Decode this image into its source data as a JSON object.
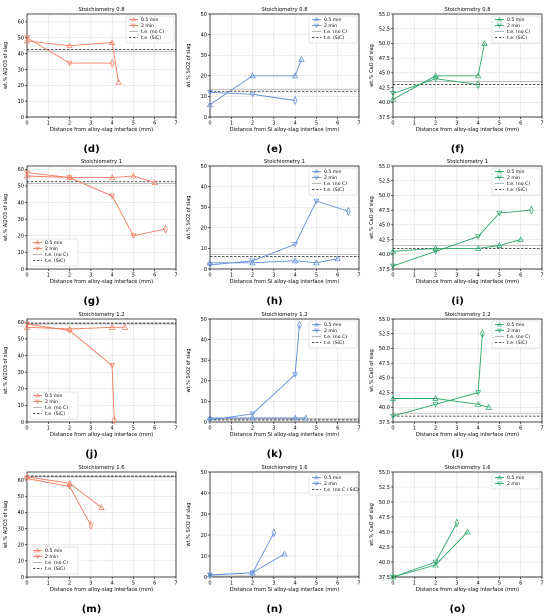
{
  "colors": {
    "al2o3": "#f07c61",
    "sio2": "#5f8fd8",
    "cao": "#2ea86a",
    "axis": "#000000",
    "grid": "#d9d9d9",
    "te_line": "#555555"
  },
  "chart_data": [
    {
      "type": "line",
      "panel": "(d)",
      "title": "Stoichiometry 0.8",
      "xlabel": "Distance from alloy-slag interface (mm)",
      "ylabel": "wt.% Al2O3 of slag",
      "xlim": [
        0,
        7
      ],
      "ylim": [
        0,
        65
      ],
      "xticks": [
        0,
        1,
        2,
        3,
        4,
        5,
        6,
        7
      ],
      "yticks": [
        0,
        10,
        20,
        30,
        40,
        50,
        60
      ],
      "color_key": "al2o3",
      "legend_position": "top-right",
      "legend": [
        "0.5 min",
        "2 min",
        "t.e. (no C)",
        "t.e. (SiC)"
      ],
      "series": [
        {
          "name": "0.5 min",
          "x": [
            0,
            2,
            4,
            4.3
          ],
          "y": [
            48,
            45,
            47,
            22
          ]
        },
        {
          "name": "2 min",
          "x": [
            0,
            2,
            4
          ],
          "y": [
            50,
            34,
            34
          ]
        }
      ],
      "ref_lines": [
        {
          "name": "t.e. (no C)",
          "y": 41.5
        },
        {
          "name": "t.e. (SiC)",
          "y": 42.5
        }
      ]
    },
    {
      "type": "line",
      "panel": "(e)",
      "title": "Stoichiometry 0.8",
      "xlabel": "Distance from Si alloy-slag interface (mm)",
      "ylabel": "wt.% SiO2 of slag",
      "xlim": [
        0,
        7
      ],
      "ylim": [
        0,
        50
      ],
      "xticks": [
        0,
        1,
        2,
        3,
        4,
        5,
        6,
        7
      ],
      "yticks": [
        0,
        10,
        20,
        30,
        40,
        50
      ],
      "color_key": "sio2",
      "legend_position": "top-right",
      "legend": [
        "0.5 min",
        "2 min",
        "t.e. (no C)",
        "t.e. (SiC)"
      ],
      "series": [
        {
          "name": "0.5 min",
          "x": [
            0,
            2,
            4,
            4.3
          ],
          "y": [
            6,
            20,
            20,
            28
          ]
        },
        {
          "name": "2 min",
          "x": [
            0,
            2,
            4
          ],
          "y": [
            12,
            11,
            8
          ]
        }
      ],
      "ref_lines": [
        {
          "name": "t.e. (no C)",
          "y": 13.5
        },
        {
          "name": "t.e. (SiC)",
          "y": 12.5
        }
      ]
    },
    {
      "type": "line",
      "panel": "(f)",
      "title": "Stoichiometry 0.8",
      "xlabel": "Distance from alloy-slag interface (mm)",
      "ylabel": "wt.% CaO of slag",
      "xlim": [
        0,
        7
      ],
      "ylim": [
        37.5,
        55
      ],
      "xticks": [
        0,
        1,
        2,
        3,
        4,
        5,
        6,
        7
      ],
      "yticks": [
        37.5,
        40.0,
        42.5,
        45.0,
        47.5,
        50.0,
        52.5,
        55.0
      ],
      "ytick_labels": [
        "37.5",
        "40.0",
        "42.5",
        "45.0",
        "47.5",
        "50.0",
        "52.5",
        "55.0"
      ],
      "color_key": "cao",
      "legend_position": "top-right",
      "legend": [
        "0.5 min",
        "2 min",
        "t.e. (no C)",
        "t.e. (SiC)"
      ],
      "series": [
        {
          "name": "0.5 min",
          "x": [
            0,
            2,
            4,
            4.3
          ],
          "y": [
            40.5,
            44.5,
            44.5,
            50
          ]
        },
        {
          "name": "2 min",
          "x": [
            0,
            2,
            4
          ],
          "y": [
            41.5,
            44,
            43
          ]
        }
      ],
      "ref_lines": [
        {
          "name": "t.e. (no C)",
          "y": 43.5
        },
        {
          "name": "t.e. (SiC)",
          "y": 43.0
        }
      ]
    },
    {
      "type": "line",
      "panel": "(g)",
      "title": "Stoichiometry 1",
      "xlabel": "Distance from alloy-slag interface (mm)",
      "ylabel": "wt.% Al2O3 of slag",
      "xlim": [
        0,
        7
      ],
      "ylim": [
        0,
        62
      ],
      "xticks": [
        0,
        1,
        2,
        3,
        4,
        5,
        6,
        7
      ],
      "yticks": [
        0,
        10,
        20,
        30,
        40,
        50,
        60
      ],
      "color_key": "al2o3",
      "legend_position": "bottom-left",
      "legend": [
        "0.5 min",
        "2 min",
        "t.e. (no C)",
        "t.e. (SiC)"
      ],
      "series": [
        {
          "name": "0.5 min",
          "x": [
            0,
            2,
            4,
            5,
            6
          ],
          "y": [
            56,
            55,
            55,
            56,
            52
          ]
        },
        {
          "name": "2 min",
          "x": [
            0,
            2,
            4,
            5,
            6.5
          ],
          "y": [
            58,
            55,
            44,
            20,
            24
          ]
        }
      ],
      "ref_lines": [
        {
          "name": "t.e. (no C)",
          "y": 51.5
        },
        {
          "name": "t.e. (SiC)",
          "y": 52.5
        }
      ]
    },
    {
      "type": "line",
      "panel": "(h)",
      "title": "Stoichiometry 1",
      "xlabel": "Distance from Si alloy-slag interface (mm)",
      "ylabel": "wt.% SiO2 of slag",
      "xlim": [
        0,
        7
      ],
      "ylim": [
        0,
        50
      ],
      "xticks": [
        0,
        1,
        2,
        3,
        4,
        5,
        6,
        7
      ],
      "yticks": [
        0,
        10,
        20,
        30,
        40,
        50
      ],
      "color_key": "sio2",
      "legend_position": "top-right",
      "legend": [
        "0.5 min",
        "2 min",
        "t.e. (no C)",
        "t.e. (SiC)"
      ],
      "series": [
        {
          "name": "0.5 min",
          "x": [
            0,
            2,
            4,
            5,
            6
          ],
          "y": [
            3,
            3,
            4,
            3,
            5
          ]
        },
        {
          "name": "2 min",
          "x": [
            0,
            2,
            4,
            5,
            6.5
          ],
          "y": [
            2,
            4,
            12,
            33,
            28
          ]
        }
      ],
      "ref_lines": [
        {
          "name": "t.e. (no C)",
          "y": 7
        },
        {
          "name": "t.e. (SiC)",
          "y": 6
        }
      ]
    },
    {
      "type": "line",
      "panel": "(i)",
      "title": "Stoichiometry 1",
      "xlabel": "Distance from alloy-slag interface (mm)",
      "ylabel": "wt.% CaO of slag",
      "xlim": [
        0,
        7
      ],
      "ylim": [
        37.5,
        55
      ],
      "xticks": [
        0,
        1,
        2,
        3,
        4,
        5,
        6,
        7
      ],
      "yticks": [
        37.5,
        40.0,
        42.5,
        45.0,
        47.5,
        50.0,
        52.5,
        55.0
      ],
      "ytick_labels": [
        "37.5",
        "40.0",
        "42.5",
        "45.0",
        "47.5",
        "50.0",
        "52.5",
        "55.0"
      ],
      "color_key": "cao",
      "legend_position": "top-right",
      "legend": [
        "0.5 min",
        "2 min",
        "t.e. (no C)",
        "t.e. (SiC)"
      ],
      "series": [
        {
          "name": "0.5 min",
          "x": [
            0,
            2,
            4,
            5,
            6
          ],
          "y": [
            40.5,
            41,
            41,
            41.5,
            42.5
          ]
        },
        {
          "name": "2 min",
          "x": [
            0,
            2,
            4,
            5,
            6.5
          ],
          "y": [
            38,
            40.5,
            43,
            47,
            47.5
          ]
        }
      ],
      "ref_lines": [
        {
          "name": "t.e. (no C)",
          "y": 41.5
        },
        {
          "name": "t.e. (SiC)",
          "y": 41
        }
      ]
    },
    {
      "type": "line",
      "panel": "(j)",
      "title": "Stoichiometry 1.2",
      "xlabel": "Distance from alloy-slag interface (mm)",
      "ylabel": "wt.% Al2O3 of slag",
      "xlim": [
        0,
        7
      ],
      "ylim": [
        0,
        62
      ],
      "xticks": [
        0,
        1,
        2,
        3,
        4,
        5,
        6,
        7
      ],
      "yticks": [
        0,
        10,
        20,
        30,
        40,
        50,
        60
      ],
      "color_key": "al2o3",
      "legend_position": "bottom-left",
      "legend": [
        "0.5 min",
        "2 min",
        "t.e. (no C)",
        "t.e. (SiC)"
      ],
      "series": [
        {
          "name": "0.5 min",
          "x": [
            0,
            2,
            4,
            4.6
          ],
          "y": [
            57,
            56,
            57,
            57
          ]
        },
        {
          "name": "2 min",
          "x": [
            0,
            2,
            4,
            4.1
          ],
          "y": [
            59,
            55,
            34,
            1
          ]
        }
      ],
      "ref_lines": [
        {
          "name": "t.e. (no C)",
          "y": 59
        },
        {
          "name": "t.e. (SiC)",
          "y": 59.5
        }
      ]
    },
    {
      "type": "line",
      "panel": "(k)",
      "title": "Stoichiometry 1.2",
      "xlabel": "Distance from Si alloy-slag interface (mm)",
      "ylabel": "wt.% SiO2 of slag",
      "xlim": [
        0,
        7
      ],
      "ylim": [
        0,
        50
      ],
      "xticks": [
        0,
        1,
        2,
        3,
        4,
        5,
        6,
        7
      ],
      "yticks": [
        0,
        10,
        20,
        30,
        40,
        50
      ],
      "color_key": "sio2",
      "legend_position": "top-right",
      "legend": [
        "0.5 min",
        "2 min",
        "t.e. (no C)",
        "t.e. (SiC)"
      ],
      "series": [
        {
          "name": "0.5 min",
          "x": [
            0,
            2,
            4,
            4.5
          ],
          "y": [
            2,
            2,
            2,
            2
          ]
        },
        {
          "name": "2 min",
          "x": [
            0,
            2,
            4,
            4.2
          ],
          "y": [
            1,
            4,
            23,
            47
          ]
        }
      ],
      "ref_lines": [
        {
          "name": "t.e. (no C)",
          "y": 1.5
        },
        {
          "name": "t.e. (SiC)",
          "y": 1
        }
      ]
    },
    {
      "type": "line",
      "panel": "(l)",
      "title": "Stoichiometry 1.2",
      "xlabel": "Distance from alloy-slag interface (mm)",
      "ylabel": "wt.% CaO of slag",
      "xlim": [
        0,
        7
      ],
      "ylim": [
        37.5,
        55
      ],
      "xticks": [
        0,
        1,
        2,
        3,
        4,
        5,
        6,
        7
      ],
      "yticks": [
        37.5,
        40.0,
        42.5,
        45.0,
        47.5,
        50.0,
        52.5,
        55.0
      ],
      "ytick_labels": [
        "37.5",
        "40.0",
        "42.5",
        "45.0",
        "47.5",
        "50.0",
        "52.5",
        "55.0"
      ],
      "color_key": "cao",
      "legend_position": "top-right",
      "legend": [
        "0.5 min",
        "2 min",
        "t.e. (no C)",
        "t.e. (SiC)"
      ],
      "series": [
        {
          "name": "0.5 min",
          "x": [
            0,
            2,
            4,
            4.5
          ],
          "y": [
            41.5,
            41.5,
            40.5,
            40
          ]
        },
        {
          "name": "2 min",
          "x": [
            0,
            2,
            4,
            4.2
          ],
          "y": [
            38.5,
            40.5,
            42.5,
            52.5
          ]
        }
      ],
      "ref_lines": [
        {
          "name": "t.e. (no C)",
          "y": 39
        },
        {
          "name": "t.e. (SiC)",
          "y": 38.5
        }
      ]
    },
    {
      "type": "line",
      "panel": "(m)",
      "title": "Stoichiometry 1.6",
      "xlabel": "Distance from alloy-slag interface (mm)",
      "ylabel": "wt.% Al2O3 of slag",
      "xlim": [
        0,
        7
      ],
      "ylim": [
        0,
        65
      ],
      "xticks": [
        0,
        1,
        2,
        3,
        4,
        5,
        6,
        7
      ],
      "yticks": [
        0,
        10,
        20,
        30,
        40,
        50,
        60
      ],
      "color_key": "al2o3",
      "legend_position": "bottom-left",
      "legend": [
        "0.5 min",
        "2 min",
        "t.e. (no C)",
        "t.e. (SiC)"
      ],
      "series": [
        {
          "name": "0.5 min",
          "x": [
            0,
            2,
            3.5
          ],
          "y": [
            62,
            58,
            43
          ]
        },
        {
          "name": "2 min",
          "x": [
            0,
            2,
            3
          ],
          "y": [
            61,
            56,
            32
          ]
        }
      ],
      "ref_lines": [
        {
          "name": "t.e. (no C)",
          "y": 62
        },
        {
          "name": "t.e. (SiC)",
          "y": 62.5
        }
      ]
    },
    {
      "type": "line",
      "panel": "(n)",
      "title": "Stoichiometry 1.6",
      "xlabel": "Distance from Si alloy-slag interface (mm)",
      "ylabel": "wt.% SiO2 of slag",
      "xlim": [
        0,
        7
      ],
      "ylim": [
        0,
        50
      ],
      "xticks": [
        0,
        1,
        2,
        3,
        4,
        5,
        6,
        7
      ],
      "yticks": [
        0,
        10,
        20,
        30,
        40,
        50
      ],
      "color_key": "sio2",
      "legend_position": "top-right",
      "legend": [
        "0.5 min",
        "2 min",
        "t.e. (no C / SiC)"
      ],
      "series": [
        {
          "name": "0.5 min",
          "x": [
            0,
            2,
            3.5
          ],
          "y": [
            1,
            2,
            11
          ]
        },
        {
          "name": "2 min",
          "x": [
            0,
            2,
            3
          ],
          "y": [
            1,
            2,
            21
          ]
        }
      ],
      "ref_lines": [
        {
          "name": "t.e. (no C / SiC)",
          "y": 0.5
        }
      ]
    },
    {
      "type": "line",
      "panel": "(o)",
      "title": "Stoichiometry 1.6",
      "xlabel": "Distance from alloy-slag interface (mm)",
      "ylabel": "wt.% CaO of slag",
      "xlim": [
        0,
        7
      ],
      "ylim": [
        37.5,
        55
      ],
      "xticks": [
        0,
        1,
        2,
        3,
        4,
        5,
        6,
        7
      ],
      "yticks": [
        37.5,
        40.0,
        42.5,
        45.0,
        47.5,
        50.0,
        52.5,
        55.0
      ],
      "ytick_labels": [
        "37.5",
        "40.0",
        "42.5",
        "45.0",
        "47.5",
        "50.0",
        "52.5",
        "55.0"
      ],
      "color_key": "cao",
      "legend_position": "top-right",
      "legend": [
        "0.5 min",
        "2 min"
      ],
      "series": [
        {
          "name": "0.5 min",
          "x": [
            0,
            2,
            3.5
          ],
          "y": [
            37.5,
            39.5,
            45
          ]
        },
        {
          "name": "2 min",
          "x": [
            0,
            2,
            3
          ],
          "y": [
            37.5,
            40,
            46.5
          ]
        }
      ],
      "ref_lines": [
        {
          "name": "",
          "y": 37.5
        }
      ]
    }
  ]
}
